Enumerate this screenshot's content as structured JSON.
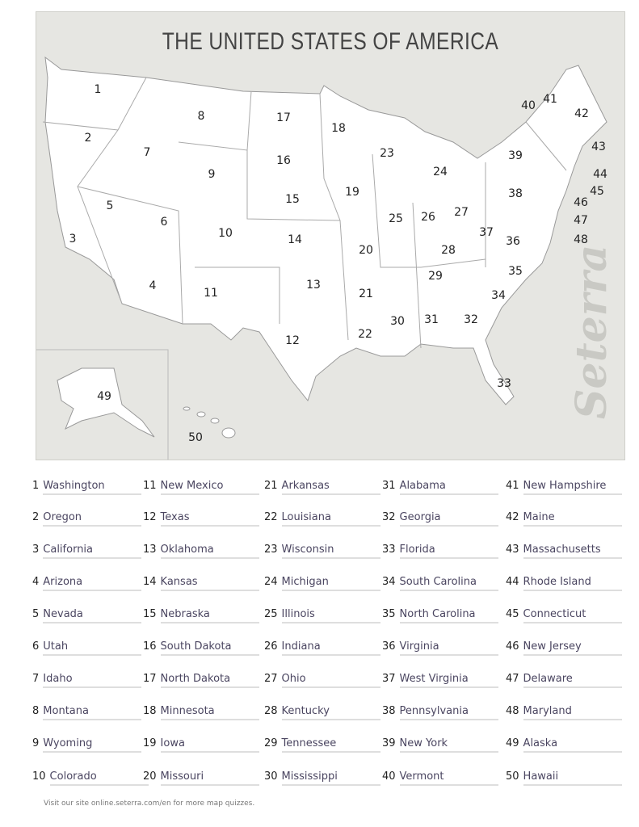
{
  "title": "THE UNITED STATES OF AMERICA",
  "brand": "Seterra",
  "footer": "Visit our site online.seterra.com/en for more map quizzes.",
  "colors": {
    "map_background": "#e6e6e2",
    "state_fill": "#ffffff",
    "name_text": "#4a4560"
  },
  "map_numbers": [
    "1",
    "2",
    "3",
    "4",
    "5",
    "6",
    "7",
    "8",
    "9",
    "10",
    "11",
    "12",
    "13",
    "14",
    "15",
    "16",
    "17",
    "18",
    "19",
    "20",
    "21",
    "22",
    "23",
    "24",
    "25",
    "26",
    "27",
    "28",
    "29",
    "30",
    "31",
    "32",
    "33",
    "34",
    "35",
    "36",
    "37",
    "38",
    "39",
    "40",
    "41",
    "42",
    "43",
    "44",
    "45",
    "46",
    "47",
    "48",
    "49",
    "50"
  ],
  "states": [
    {
      "n": "1",
      "name": "Washington"
    },
    {
      "n": "2",
      "name": "Oregon"
    },
    {
      "n": "3",
      "name": "California"
    },
    {
      "n": "4",
      "name": "Arizona"
    },
    {
      "n": "5",
      "name": "Nevada"
    },
    {
      "n": "6",
      "name": "Utah"
    },
    {
      "n": "7",
      "name": "Idaho"
    },
    {
      "n": "8",
      "name": "Montana"
    },
    {
      "n": "9",
      "name": "Wyoming"
    },
    {
      "n": "10",
      "name": "Colorado"
    },
    {
      "n": "11",
      "name": "New Mexico"
    },
    {
      "n": "12",
      "name": "Texas"
    },
    {
      "n": "13",
      "name": "Oklahoma"
    },
    {
      "n": "14",
      "name": "Kansas"
    },
    {
      "n": "15",
      "name": "Nebraska"
    },
    {
      "n": "16",
      "name": "South Dakota"
    },
    {
      "n": "17",
      "name": "North Dakota"
    },
    {
      "n": "18",
      "name": "Minnesota"
    },
    {
      "n": "19",
      "name": "Iowa"
    },
    {
      "n": "20",
      "name": "Missouri"
    },
    {
      "n": "21",
      "name": "Arkansas"
    },
    {
      "n": "22",
      "name": "Louisiana"
    },
    {
      "n": "23",
      "name": "Wisconsin"
    },
    {
      "n": "24",
      "name": "Michigan"
    },
    {
      "n": "25",
      "name": "Illinois"
    },
    {
      "n": "26",
      "name": "Indiana"
    },
    {
      "n": "27",
      "name": "Ohio"
    },
    {
      "n": "28",
      "name": "Kentucky"
    },
    {
      "n": "29",
      "name": "Tennessee"
    },
    {
      "n": "30",
      "name": "Mississippi"
    },
    {
      "n": "31",
      "name": "Alabama"
    },
    {
      "n": "32",
      "name": "Georgia"
    },
    {
      "n": "33",
      "name": "Florida"
    },
    {
      "n": "34",
      "name": "South Carolina"
    },
    {
      "n": "35",
      "name": "North Carolina"
    },
    {
      "n": "36",
      "name": "Virginia"
    },
    {
      "n": "37",
      "name": "West Virginia"
    },
    {
      "n": "38",
      "name": "Pennsylvania"
    },
    {
      "n": "39",
      "name": "New York"
    },
    {
      "n": "40",
      "name": "Vermont"
    },
    {
      "n": "41",
      "name": "New Hampshire"
    },
    {
      "n": "42",
      "name": "Maine"
    },
    {
      "n": "43",
      "name": "Massachusetts"
    },
    {
      "n": "44",
      "name": "Rhode Island"
    },
    {
      "n": "45",
      "name": "Connecticut"
    },
    {
      "n": "46",
      "name": "New Jersey"
    },
    {
      "n": "47",
      "name": "Delaware"
    },
    {
      "n": "48",
      "name": "Maryland"
    },
    {
      "n": "49",
      "name": "Alaska"
    },
    {
      "n": "50",
      "name": "Hawaii"
    }
  ]
}
